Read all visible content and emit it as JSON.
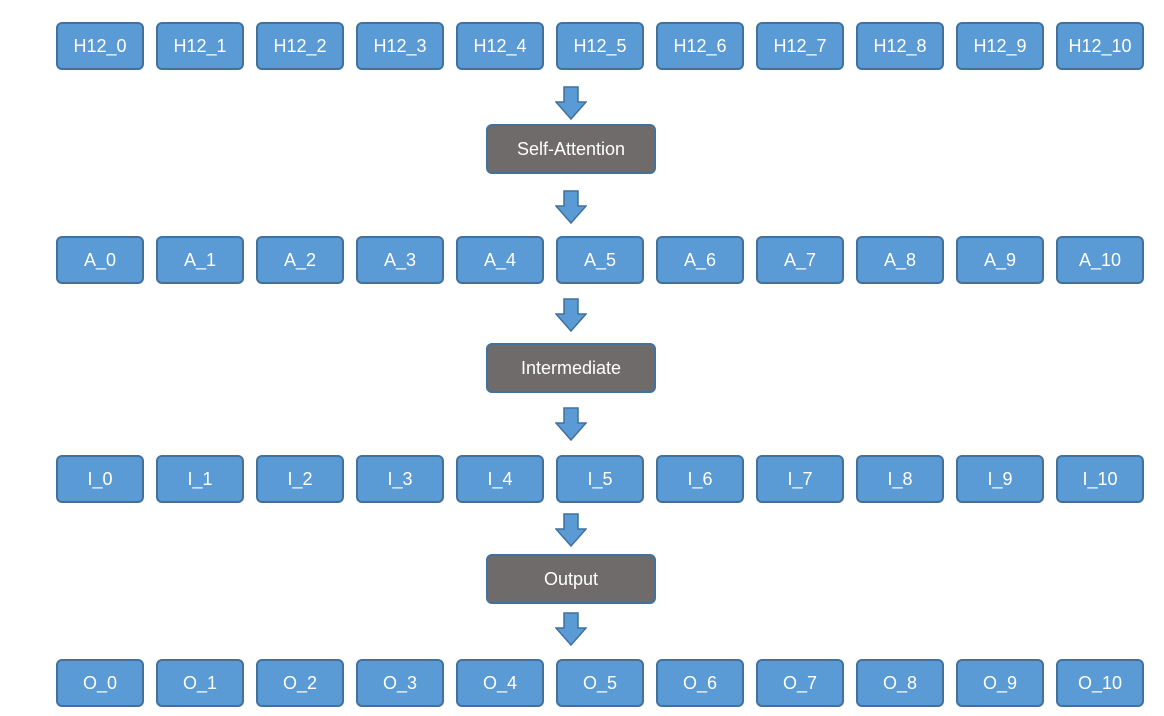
{
  "rows": {
    "hidden": [
      "H12_0",
      "H12_1",
      "H12_2",
      "H12_3",
      "H12_4",
      "H12_5",
      "H12_6",
      "H12_7",
      "H12_8",
      "H12_9",
      "H12_10"
    ],
    "attention": [
      "A_0",
      "A_1",
      "A_2",
      "A_3",
      "A_4",
      "A_5",
      "A_6",
      "A_7",
      "A_8",
      "A_9",
      "A_10"
    ],
    "intermediate": [
      "I_0",
      "I_1",
      "I_2",
      "I_3",
      "I_4",
      "I_5",
      "I_6",
      "I_7",
      "I_8",
      "I_9",
      "I_10"
    ],
    "output": [
      "O_0",
      "O_1",
      "O_2",
      "O_3",
      "O_4",
      "O_5",
      "O_6",
      "O_7",
      "O_8",
      "O_9",
      "O_10"
    ]
  },
  "ops": {
    "self_attention": "Self-Attention",
    "intermediate": "Intermediate",
    "output": "Output"
  },
  "colors": {
    "token_fill": "#5b9bd5",
    "token_border": "#41719c",
    "op_fill": "#706b6b",
    "arrow_fill": "#5b9bd5",
    "arrow_stroke": "#41719c"
  }
}
